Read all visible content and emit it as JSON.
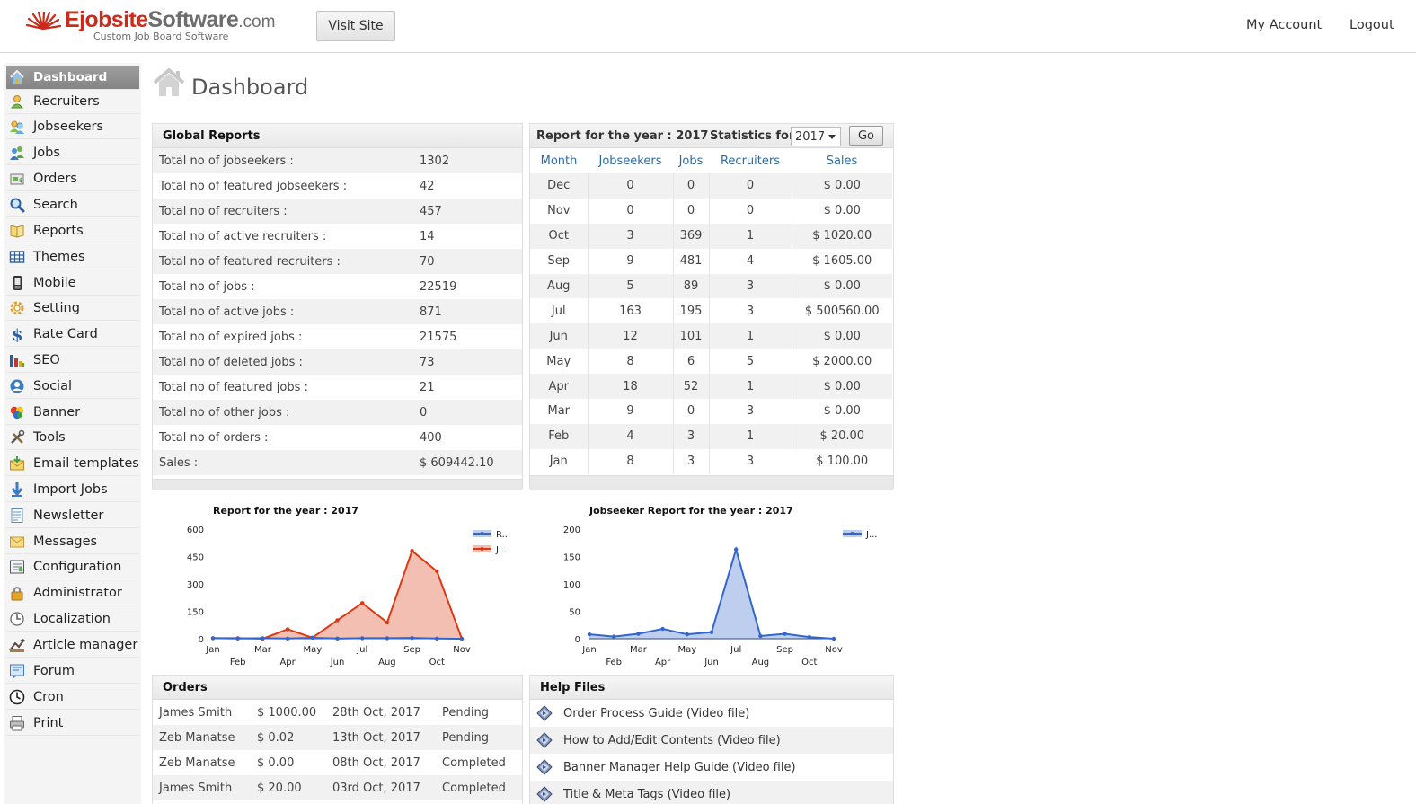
{
  "header": {
    "logo_brand_red": "Ejobsite",
    "logo_brand_grey": "Software",
    "logo_tld": ".com",
    "logo_tagline": "Custom Job Board Software",
    "visit_site_label": "Visit Site",
    "my_account_label": "My Account",
    "logout_label": "Logout"
  },
  "sidebar": {
    "items": [
      {
        "label": "Dashboard",
        "icon": "home-icon",
        "active": true
      },
      {
        "label": "Recruiters",
        "icon": "user-icon"
      },
      {
        "label": "Jobseekers",
        "icon": "users-icon"
      },
      {
        "label": "Jobs",
        "icon": "jobs-icon"
      },
      {
        "label": "Orders",
        "icon": "orders-icon"
      },
      {
        "label": "Search",
        "icon": "magnifier-icon"
      },
      {
        "label": "Reports",
        "icon": "book-icon"
      },
      {
        "label": "Themes",
        "icon": "grid-icon"
      },
      {
        "label": "Mobile",
        "icon": "mobile-icon"
      },
      {
        "label": "Setting",
        "icon": "gear-icon"
      },
      {
        "label": "Rate Card",
        "icon": "dollar-icon"
      },
      {
        "label": "SEO",
        "icon": "bar-chart-icon"
      },
      {
        "label": "Social",
        "icon": "social-icon"
      },
      {
        "label": "Banner",
        "icon": "banner-icon"
      },
      {
        "label": "Tools",
        "icon": "tools-icon"
      },
      {
        "label": "Email templates",
        "icon": "email-icon"
      },
      {
        "label": "Import Jobs",
        "icon": "import-icon"
      },
      {
        "label": "Newsletter",
        "icon": "newsletter-icon"
      },
      {
        "label": "Messages",
        "icon": "envelope-icon"
      },
      {
        "label": "Configuration",
        "icon": "configuration-icon"
      },
      {
        "label": "Administrator",
        "icon": "lock-icon"
      },
      {
        "label": "Localization",
        "icon": "clock-small-icon"
      },
      {
        "label": "Article manager",
        "icon": "article-icon"
      },
      {
        "label": "Forum",
        "icon": "forum-icon"
      },
      {
        "label": "Cron",
        "icon": "clock-icon"
      },
      {
        "label": "Print",
        "icon": "printer-icon"
      }
    ]
  },
  "page": {
    "title": "Dashboard",
    "icon": "house-icon"
  },
  "global_reports": {
    "title": "Global Reports",
    "rows": [
      {
        "label": "Total no of jobseekers :",
        "value": "1302"
      },
      {
        "label": "Total no of featured jobseekers :",
        "value": "42"
      },
      {
        "label": "Total no of recruiters :",
        "value": "457"
      },
      {
        "label": "Total no of active recruiters :",
        "value": "14"
      },
      {
        "label": "Total no of featured recruiters :",
        "value": "70"
      },
      {
        "label": "Total no of jobs :",
        "value": "22519"
      },
      {
        "label": "Total no of active jobs :",
        "value": "871"
      },
      {
        "label": "Total no of expired jobs :",
        "value": "21575"
      },
      {
        "label": "Total no of deleted jobs :",
        "value": "73"
      },
      {
        "label": "Total no of featured jobs :",
        "value": "21"
      },
      {
        "label": "Total no of other jobs :",
        "value": "0"
      },
      {
        "label": "Total no of orders :",
        "value": "400"
      },
      {
        "label": "Sales :",
        "value": "$ 609442.10"
      }
    ]
  },
  "year_report": {
    "title": "Report for the year : 2017",
    "statistics_label": "Statistics for :",
    "selected_year": "2017",
    "go_label": "Go",
    "columns": [
      "Month",
      "Jobseekers",
      "Jobs",
      "Recruiters",
      "Sales"
    ],
    "rows": [
      [
        "Dec",
        "0",
        "0",
        "0",
        "$ 0.00"
      ],
      [
        "Nov",
        "0",
        "0",
        "0",
        "$ 0.00"
      ],
      [
        "Oct",
        "3",
        "369",
        "1",
        "$ 1020.00"
      ],
      [
        "Sep",
        "9",
        "481",
        "4",
        "$ 1605.00"
      ],
      [
        "Aug",
        "5",
        "89",
        "3",
        "$ 0.00"
      ],
      [
        "Jul",
        "163",
        "195",
        "3",
        "$ 500560.00"
      ],
      [
        "Jun",
        "12",
        "101",
        "1",
        "$ 0.00"
      ],
      [
        "May",
        "8",
        "6",
        "5",
        "$ 2000.00"
      ],
      [
        "Apr",
        "18",
        "52",
        "1",
        "$ 0.00"
      ],
      [
        "Mar",
        "9",
        "0",
        "3",
        "$ 0.00"
      ],
      [
        "Feb",
        "4",
        "3",
        "1",
        "$ 20.00"
      ],
      [
        "Jan",
        "8",
        "3",
        "3",
        "$ 100.00"
      ]
    ]
  },
  "chart_data": [
    {
      "type": "area",
      "title": "Report for the year : 2017",
      "categories": [
        "Jan",
        "Feb",
        "Mar",
        "Apr",
        "May",
        "Jun",
        "Jul",
        "Aug",
        "Sep",
        "Oct",
        "Nov"
      ],
      "ylim": [
        0,
        600
      ],
      "yticks": [
        "600",
        "450",
        "300",
        "150",
        "0"
      ],
      "series": [
        {
          "name": "R...",
          "color": "#3366cc",
          "values": [
            3,
            1,
            3,
            1,
            5,
            1,
            3,
            3,
            4,
            1,
            0
          ]
        },
        {
          "name": "J...",
          "color": "#dc3912",
          "values": [
            3,
            3,
            0,
            52,
            6,
            101,
            195,
            89,
            481,
            369,
            0
          ]
        }
      ],
      "legend": "right",
      "grid": false
    },
    {
      "type": "area",
      "title": "Jobseeker Report for the year : 2017",
      "categories": [
        "Jan",
        "Feb",
        "Mar",
        "Apr",
        "May",
        "Jun",
        "Jul",
        "Aug",
        "Sep",
        "Oct",
        "Nov"
      ],
      "ylim": [
        0,
        200
      ],
      "yticks": [
        "200",
        "150",
        "100",
        "50",
        "0"
      ],
      "series": [
        {
          "name": "J...",
          "color": "#3366cc",
          "values": [
            8,
            4,
            9,
            18,
            8,
            12,
            163,
            5,
            9,
            3,
            0
          ]
        }
      ],
      "legend": "right",
      "grid": false
    }
  ],
  "orders": {
    "title": "Orders",
    "rows": [
      [
        "James Smith",
        "$ 1000.00",
        "28th Oct, 2017",
        "Pending"
      ],
      [
        "Zeb Manatse",
        "$ 0.02",
        "13th Oct, 2017",
        "Pending"
      ],
      [
        "Zeb Manatse",
        "$ 0.00",
        "08th Oct, 2017",
        "Completed"
      ],
      [
        "James Smith",
        "$ 20.00",
        "03rd Oct, 2017",
        "Completed"
      ]
    ]
  },
  "help_files": {
    "title": "Help Files",
    "items": [
      "Order Process Guide (Video file)",
      "How to Add/Edit Contents (Video file)",
      "Banner Manager Help Guide (Video file)",
      "Title & Meta Tags (Video file)"
    ]
  }
}
